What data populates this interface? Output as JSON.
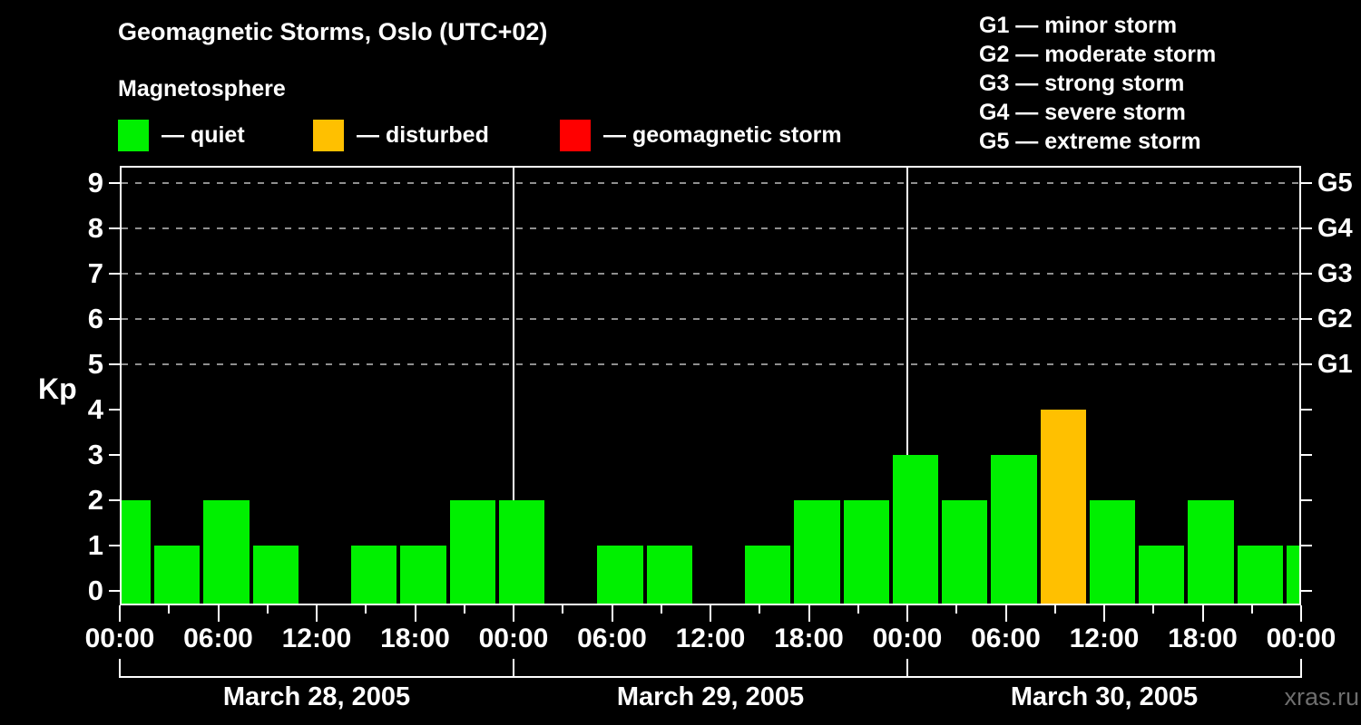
{
  "title": "Geomagnetic Storms, Oslo (UTC+02)",
  "subtitle": "Magnetosphere",
  "colors": {
    "quiet": "#00f000",
    "disturbed": "#ffc000",
    "storm": "#ff0000",
    "axis": "#ffffff",
    "grid": "#8f8f8f",
    "background": "#000000",
    "watermark_text": "#6e6e6e"
  },
  "legend": {
    "items": [
      {
        "status": "quiet",
        "label": "— quiet"
      },
      {
        "status": "disturbed",
        "label": "— disturbed"
      },
      {
        "status": "storm",
        "label": "— geomagnetic storm"
      }
    ]
  },
  "g_scale_legend": [
    "G1 — minor storm",
    "G2 — moderate storm",
    "G3 — strong storm",
    "G4 — severe storm",
    "G5 — extreme storm"
  ],
  "watermark": "xras.ru",
  "chart_data": {
    "type": "bar",
    "title": "Geomagnetic Storms, Oslo (UTC+02)",
    "ylabel": "Kp",
    "ylim": [
      0,
      9
    ],
    "y_ticks": [
      0,
      1,
      2,
      3,
      4,
      5,
      6,
      7,
      8,
      9
    ],
    "gridlines_at": [
      5,
      6,
      7,
      8,
      9
    ],
    "grid_style": "dashed",
    "legend_position": "top",
    "right_axis_labels": [
      {
        "label": "G1",
        "kp": 5
      },
      {
        "label": "G2",
        "kp": 6
      },
      {
        "label": "G3",
        "kp": 7
      },
      {
        "label": "G4",
        "kp": 8
      },
      {
        "label": "G5",
        "kp": 9
      }
    ],
    "x_hours_total": 72,
    "x_tick_every_h": 3,
    "x_label_every_h": 6,
    "x_tick_labels": [
      "00:00",
      "06:00",
      "12:00",
      "18:00",
      "00:00",
      "06:00",
      "12:00",
      "18:00",
      "00:00",
      "06:00",
      "12:00",
      "18:00",
      "00:00"
    ],
    "days": [
      {
        "label": "March 28, 2005",
        "start_h": 0,
        "end_h": 24
      },
      {
        "label": "March 29, 2005",
        "start_h": 24,
        "end_h": 48
      },
      {
        "label": "March 30, 2005",
        "start_h": 48,
        "end_h": 72
      }
    ],
    "bars": [
      {
        "start_h": 0,
        "end_h": 2,
        "kp": 2,
        "status": "quiet"
      },
      {
        "start_h": 2,
        "end_h": 5,
        "kp": 1,
        "status": "quiet"
      },
      {
        "start_h": 5,
        "end_h": 8,
        "kp": 2,
        "status": "quiet"
      },
      {
        "start_h": 8,
        "end_h": 11,
        "kp": 1,
        "status": "quiet"
      },
      {
        "start_h": 11,
        "end_h": 14,
        "kp": 0,
        "status": "quiet"
      },
      {
        "start_h": 14,
        "end_h": 17,
        "kp": 1,
        "status": "quiet"
      },
      {
        "start_h": 17,
        "end_h": 20,
        "kp": 1,
        "status": "quiet"
      },
      {
        "start_h": 20,
        "end_h": 23,
        "kp": 2,
        "status": "quiet"
      },
      {
        "start_h": 23,
        "end_h": 26,
        "kp": 2,
        "status": "quiet"
      },
      {
        "start_h": 26,
        "end_h": 29,
        "kp": 0,
        "status": "quiet"
      },
      {
        "start_h": 29,
        "end_h": 32,
        "kp": 1,
        "status": "quiet"
      },
      {
        "start_h": 32,
        "end_h": 35,
        "kp": 1,
        "status": "quiet"
      },
      {
        "start_h": 35,
        "end_h": 38,
        "kp": 0,
        "status": "quiet"
      },
      {
        "start_h": 38,
        "end_h": 41,
        "kp": 1,
        "status": "quiet"
      },
      {
        "start_h": 41,
        "end_h": 44,
        "kp": 2,
        "status": "quiet"
      },
      {
        "start_h": 44,
        "end_h": 47,
        "kp": 2,
        "status": "quiet"
      },
      {
        "start_h": 47,
        "end_h": 50,
        "kp": 3,
        "status": "quiet"
      },
      {
        "start_h": 50,
        "end_h": 53,
        "kp": 2,
        "status": "quiet"
      },
      {
        "start_h": 53,
        "end_h": 56,
        "kp": 3,
        "status": "quiet"
      },
      {
        "start_h": 56,
        "end_h": 59,
        "kp": 4,
        "status": "disturbed"
      },
      {
        "start_h": 59,
        "end_h": 62,
        "kp": 2,
        "status": "quiet"
      },
      {
        "start_h": 62,
        "end_h": 65,
        "kp": 1,
        "status": "quiet"
      },
      {
        "start_h": 65,
        "end_h": 68,
        "kp": 2,
        "status": "quiet"
      },
      {
        "start_h": 68,
        "end_h": 71,
        "kp": 1,
        "status": "quiet"
      },
      {
        "start_h": 71,
        "end_h": 72,
        "kp": 1,
        "status": "quiet"
      }
    ]
  }
}
